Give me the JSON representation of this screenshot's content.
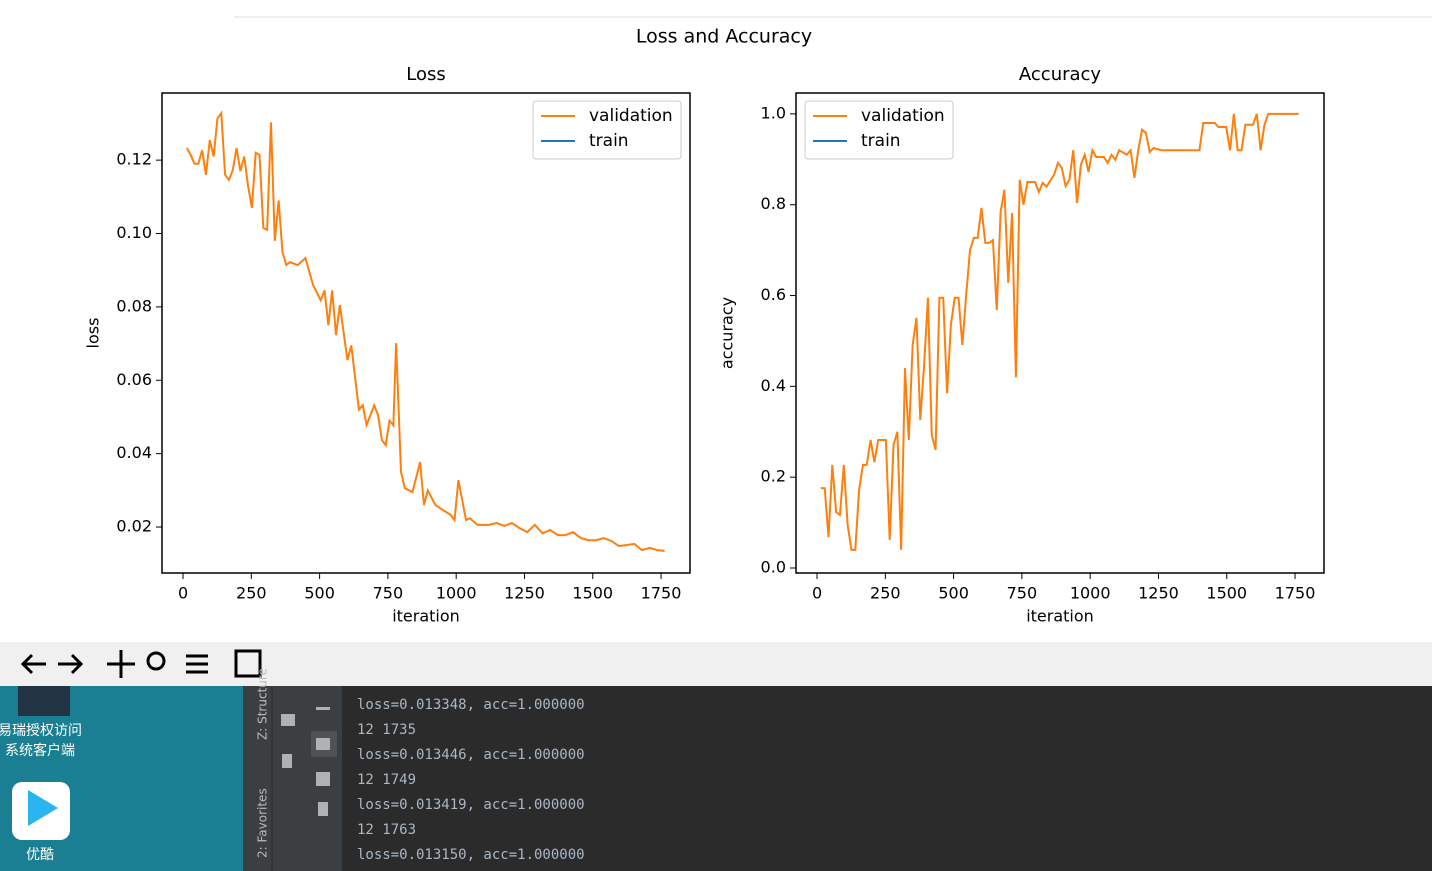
{
  "figure_title": "Loss and Accuracy",
  "chart_data": [
    {
      "type": "line",
      "title": "Loss",
      "x_label": "iteration",
      "y_label": "loss",
      "xlim": [
        -77,
        1856
      ],
      "ylim": [
        0.00747,
        0.1383
      ],
      "xticks": [
        0,
        250,
        500,
        750,
        1000,
        1250,
        1500,
        1750
      ],
      "yticks": [
        0.02,
        0.04,
        0.06,
        0.08,
        {
          "value": 0.1,
          "label": "0.10"
        },
        0.12
      ],
      "legend": "upper right",
      "series": [
        {
          "name": "validation",
          "color": "#ff7f0e",
          "x": [
            14,
            28,
            42,
            56,
            70,
            84,
            98,
            112,
            126,
            140,
            154,
            168,
            182,
            196,
            210,
            224,
            238,
            252,
            266,
            280,
            294,
            308,
            322,
            336,
            350,
            364,
            378,
            392,
            420,
            448,
            476,
            504,
            518,
            532,
            546,
            560,
            574,
            602,
            616,
            644,
            658,
            672,
            700,
            714,
            728,
            742,
            756,
            770,
            780,
            798,
            812,
            840,
            868,
            882,
            896,
            924,
            952,
            980,
            994,
            1008,
            1036,
            1050,
            1078,
            1120,
            1148,
            1176,
            1204,
            1232,
            1260,
            1288,
            1316,
            1344,
            1372,
            1400,
            1428,
            1456,
            1484,
            1512,
            1540,
            1568,
            1596,
            1624,
            1652,
            1680,
            1708,
            1736,
            1763
          ],
          "values": [
            0.1233,
            0.1214,
            0.119,
            0.119,
            0.1227,
            0.116,
            0.1255,
            0.121,
            0.1314,
            0.1328,
            0.116,
            0.1146,
            0.1173,
            0.1233,
            0.117,
            0.121,
            0.113,
            0.107,
            0.122,
            0.1214,
            0.1015,
            0.101,
            0.1303,
            0.098,
            0.109,
            0.095,
            0.0914,
            0.0922,
            0.0914,
            0.0933,
            0.086,
            0.0818,
            0.0845,
            0.075,
            0.0845,
            0.0723,
            0.0805,
            0.0655,
            0.0695,
            0.052,
            0.0532,
            0.0478,
            0.0532,
            0.0505,
            0.0437,
            0.0423,
            0.049,
            0.0477,
            0.0701,
            0.035,
            0.0306,
            0.0295,
            0.0377,
            0.026,
            0.03,
            0.026,
            0.0246,
            0.0233,
            0.0219,
            0.0328,
            0.0219,
            0.0224,
            0.0206,
            0.0206,
            0.0211,
            0.0203,
            0.0211,
            0.0197,
            0.0186,
            0.0206,
            0.0183,
            0.0192,
            0.0178,
            0.0178,
            0.0186,
            0.017,
            0.0164,
            0.0164,
            0.017,
            0.0162,
            0.0148,
            0.0151,
            0.0154,
            0.0137,
            0.0143,
            0.0137,
            0.0135
          ]
        },
        {
          "name": "train",
          "color": "#1f77b4",
          "x": [],
          "values": []
        }
      ]
    },
    {
      "type": "line",
      "title": "Accuracy",
      "x_label": "iteration",
      "y_label": "accuracy",
      "xlim": [
        -77,
        1856
      ],
      "ylim": [
        -0.011,
        1.046
      ],
      "xticks": [
        0,
        250,
        500,
        750,
        1000,
        1250,
        1500,
        1750
      ],
      "yticks": [
        {
          "value": 0,
          "label": "0.0"
        },
        0.2,
        0.4,
        0.6,
        0.8,
        {
          "value": 1,
          "label": "1.0"
        }
      ],
      "legend": "upper left",
      "series": [
        {
          "name": "validation",
          "color": "#ff7f0e",
          "x": [
            14,
            28,
            42,
            56,
            70,
            84,
            98,
            112,
            126,
            140,
            154,
            168,
            182,
            196,
            210,
            224,
            252,
            266,
            280,
            294,
            308,
            322,
            336,
            350,
            364,
            378,
            392,
            406,
            420,
            434,
            448,
            462,
            476,
            490,
            504,
            518,
            532,
            546,
            560,
            574,
            588,
            602,
            616,
            630,
            644,
            658,
            672,
            686,
            700,
            714,
            728,
            742,
            756,
            770,
            798,
            812,
            826,
            840,
            868,
            882,
            896,
            910,
            924,
            938,
            952,
            966,
            980,
            994,
            1008,
            1022,
            1050,
            1064,
            1078,
            1092,
            1106,
            1134,
            1148,
            1162,
            1176,
            1190,
            1204,
            1218,
            1232,
            1260,
            1400,
            1414,
            1456,
            1470,
            1498,
            1512,
            1526,
            1540,
            1554,
            1568,
            1596,
            1610,
            1624,
            1638,
            1652,
            1763
          ],
          "values": [
            0.176,
            0.176,
            0.068,
            0.227,
            0.123,
            0.117,
            0.227,
            0.095,
            0.04,
            0.04,
            0.172,
            0.227,
            0.227,
            0.282,
            0.233,
            0.282,
            0.282,
            0.062,
            0.271,
            0.3,
            0.04,
            0.44,
            0.282,
            0.491,
            0.551,
            0.326,
            0.447,
            0.595,
            0.293,
            0.26,
            0.595,
            0.595,
            0.385,
            0.535,
            0.595,
            0.595,
            0.491,
            0.601,
            0.7,
            0.727,
            0.727,
            0.793,
            0.716,
            0.716,
            0.722,
            0.568,
            0.784,
            0.833,
            0.628,
            0.782,
            0.42,
            0.855,
            0.8,
            0.85,
            0.85,
            0.828,
            0.848,
            0.84,
            0.866,
            0.892,
            0.881,
            0.841,
            0.855,
            0.92,
            0.804,
            0.888,
            0.91,
            0.872,
            0.92,
            0.905,
            0.905,
            0.892,
            0.91,
            0.899,
            0.92,
            0.91,
            0.92,
            0.859,
            0.92,
            0.965,
            0.958,
            0.916,
            0.925,
            0.92,
            0.92,
            0.98,
            0.98,
            0.971,
            0.971,
            0.92,
            1.0,
            0.92,
            0.92,
            0.976,
            0.976,
            1.0,
            0.92,
            0.976,
            1.0,
            1.0
          ]
        },
        {
          "name": "train",
          "color": "#1f77b4",
          "x": [],
          "values": []
        }
      ]
    }
  ],
  "desktop_icons": [
    {
      "label": "易瑞授权访问\n系统客户端"
    },
    {
      "label": "优酷"
    }
  ],
  "side_tabs": [
    "Z: Structure",
    "2: Favorites"
  ],
  "console_lines": [
    "loss=0.013348, acc=1.000000",
    "12 1735",
    "loss=0.013446, acc=1.000000",
    "12 1749",
    "loss=0.013419, acc=1.000000",
    "12 1763",
    "loss=0.013150, acc=1.000000"
  ]
}
